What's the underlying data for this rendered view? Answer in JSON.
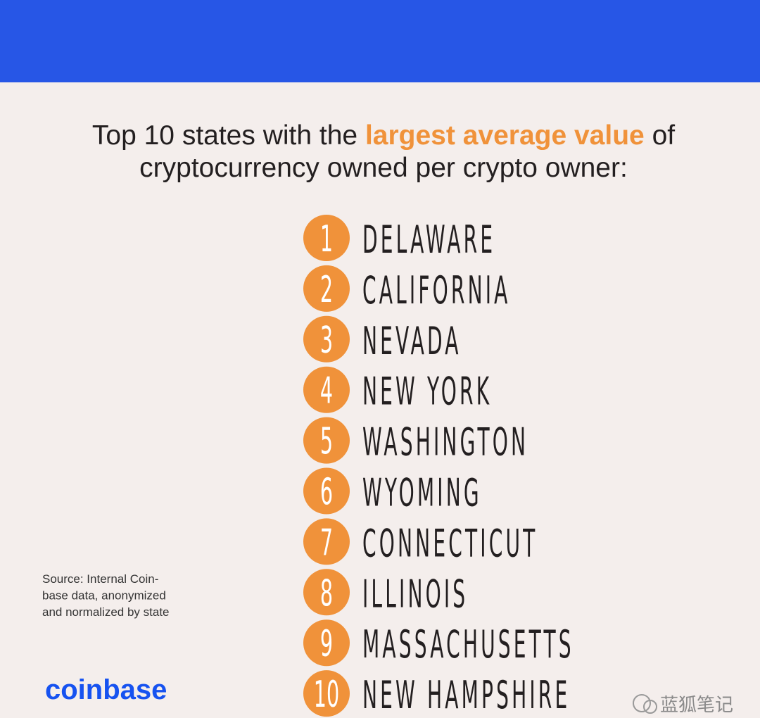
{
  "title": {
    "before": "Top 10 states with the",
    "highlight": "largest average value",
    "after": "of",
    "line2": "cryptocurrency owned per crypto owner:"
  },
  "list": [
    {
      "rank": 1,
      "state": "DELAWARE"
    },
    {
      "rank": 2,
      "state": "CALIFORNIA"
    },
    {
      "rank": 3,
      "state": "NEVADA"
    },
    {
      "rank": 4,
      "state": "NEW YORK"
    },
    {
      "rank": 5,
      "state": "WASHINGTON"
    },
    {
      "rank": 6,
      "state": "WYOMING"
    },
    {
      "rank": 7,
      "state": "CONNECTICUT"
    },
    {
      "rank": 8,
      "state": "ILLINOIS"
    },
    {
      "rank": 9,
      "state": "MASSACHUSETTS"
    },
    {
      "rank": 10,
      "state": "NEW HAMPSHIRE"
    }
  ],
  "source": [
    "Source: Internal Coin-",
    "base data, anonymized",
    "and normalized by state"
  ],
  "logo": "coinbase",
  "watermark": "蓝狐笔记"
}
